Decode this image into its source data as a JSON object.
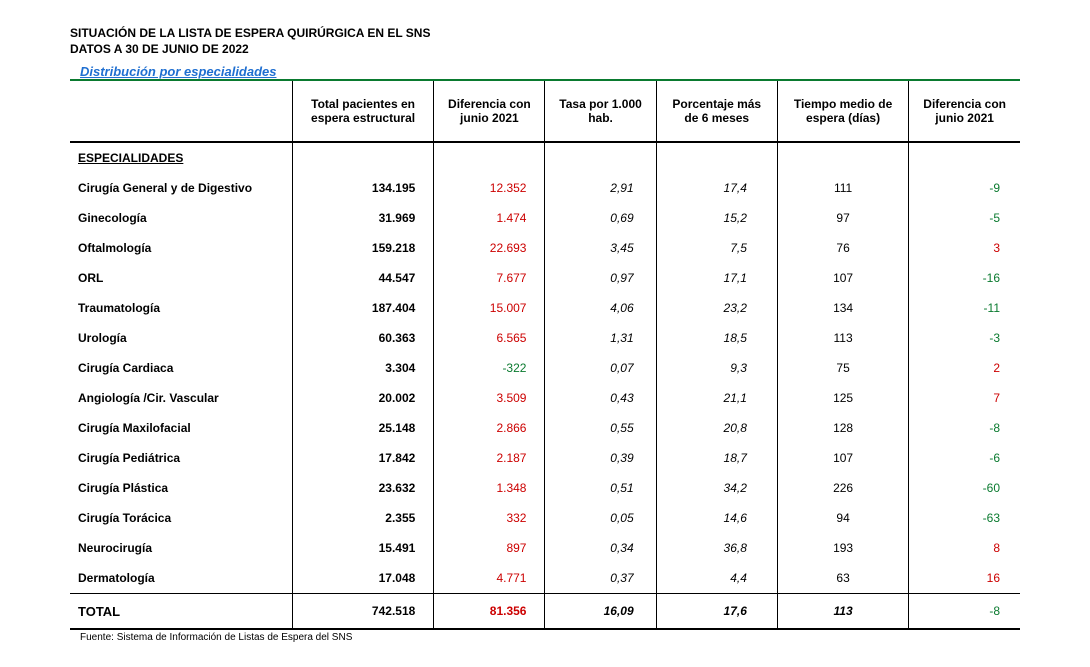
{
  "header": {
    "title1": "SITUACIÓN DE LA LISTA DE ESPERA  QUIRÚRGICA EN EL  SNS",
    "title2": "DATOS A 30 DE JUNIO DE 2022",
    "subtitle": "Distribución por especialidades"
  },
  "columns": {
    "name_header": "",
    "total": "Total pacientes en espera estructural",
    "diff1": "Diferencia con junio 2021",
    "tasa": "Tasa  por  1.000 hab.",
    "pct": "Porcentaje más de 6 meses",
    "tm": "Tiempo medio de espera (días)",
    "diff2": "Diferencia con junio 2021"
  },
  "section_label": "ESPECIALIDADES",
  "rows": [
    {
      "name": "Cirugía General y de Digestivo",
      "total": "134.195",
      "diff1": "12.352",
      "diff1_sign": "pos",
      "tasa": "2,91",
      "pct": "17,4",
      "tm": "111",
      "diff2": "-9",
      "diff2_sign": "neg"
    },
    {
      "name": "Ginecología",
      "total": "31.969",
      "diff1": "1.474",
      "diff1_sign": "pos",
      "tasa": "0,69",
      "pct": "15,2",
      "tm": "97",
      "diff2": "-5",
      "diff2_sign": "neg"
    },
    {
      "name": "Oftalmología",
      "total": "159.218",
      "diff1": "22.693",
      "diff1_sign": "pos",
      "tasa": "3,45",
      "pct": "7,5",
      "tm": "76",
      "diff2": "3",
      "diff2_sign": "pos"
    },
    {
      "name": "ORL",
      "total": "44.547",
      "diff1": "7.677",
      "diff1_sign": "pos",
      "tasa": "0,97",
      "pct": "17,1",
      "tm": "107",
      "diff2": "-16",
      "diff2_sign": "neg"
    },
    {
      "name": "Traumatología",
      "total": "187.404",
      "diff1": "15.007",
      "diff1_sign": "pos",
      "tasa": "4,06",
      "pct": "23,2",
      "tm": "134",
      "diff2": "-11",
      "diff2_sign": "neg"
    },
    {
      "name": "Urología",
      "total": "60.363",
      "diff1": "6.565",
      "diff1_sign": "pos",
      "tasa": "1,31",
      "pct": "18,5",
      "tm": "113",
      "diff2": "-3",
      "diff2_sign": "neg"
    },
    {
      "name": "Cirugía Cardiaca",
      "total": "3.304",
      "diff1": "-322",
      "diff1_sign": "neg",
      "tasa": "0,07",
      "pct": "9,3",
      "tm": "75",
      "diff2": "2",
      "diff2_sign": "pos"
    },
    {
      "name": "Angiología /Cir. Vascular",
      "total": "20.002",
      "diff1": "3.509",
      "diff1_sign": "pos",
      "tasa": "0,43",
      "pct": "21,1",
      "tm": "125",
      "diff2": "7",
      "diff2_sign": "pos"
    },
    {
      "name": "Cirugía Maxilofacial",
      "total": "25.148",
      "diff1": "2.866",
      "diff1_sign": "pos",
      "tasa": "0,55",
      "pct": "20,8",
      "tm": "128",
      "diff2": "-8",
      "diff2_sign": "neg"
    },
    {
      "name": "Cirugía Pediátrica",
      "total": "17.842",
      "diff1": "2.187",
      "diff1_sign": "pos",
      "tasa": "0,39",
      "pct": "18,7",
      "tm": "107",
      "diff2": "-6",
      "diff2_sign": "neg"
    },
    {
      "name": "Cirugía Plástica",
      "total": "23.632",
      "diff1": "1.348",
      "diff1_sign": "pos",
      "tasa": "0,51",
      "pct": "34,2",
      "tm": "226",
      "diff2": "-60",
      "diff2_sign": "neg"
    },
    {
      "name": "Cirugía Torácica",
      "total": "2.355",
      "diff1": "332",
      "diff1_sign": "pos",
      "tasa": "0,05",
      "pct": "14,6",
      "tm": "94",
      "diff2": "-63",
      "diff2_sign": "neg"
    },
    {
      "name": "Neurocirugía",
      "total": "15.491",
      "diff1": "897",
      "diff1_sign": "pos",
      "tasa": "0,34",
      "pct": "36,8",
      "tm": "193",
      "diff2": "8",
      "diff2_sign": "pos"
    },
    {
      "name": "Dermatología",
      "total": "17.048",
      "diff1": "4.771",
      "diff1_sign": "pos",
      "tasa": "0,37",
      "pct": "4,4",
      "tm": "63",
      "diff2": "16",
      "diff2_sign": "pos"
    }
  ],
  "total_row": {
    "label": "TOTAL",
    "total": "742.518",
    "diff1": "81.356",
    "diff1_sign": "pos",
    "tasa": "16,09",
    "pct": "17,6",
    "tm": "113",
    "diff2": "-8",
    "diff2_sign": "neg"
  },
  "source": "Fuente: Sistema de Información de Listas de Espera del SNS"
}
